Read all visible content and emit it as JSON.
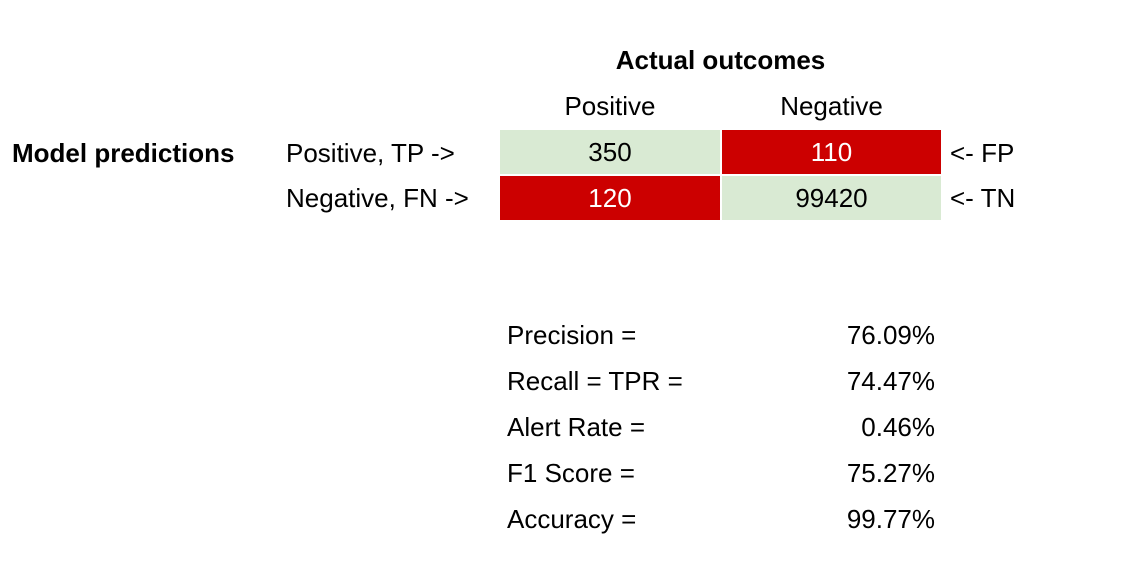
{
  "confusion_matrix": {
    "title": "Actual outcomes",
    "column_headers": [
      "Positive",
      "Negative"
    ],
    "row_group_label": "Model predictions",
    "rows": [
      {
        "label": "Positive, TP ->",
        "cells": [
          "350",
          "110"
        ],
        "suffix": "<- FP"
      },
      {
        "label": "Negative, FN ->",
        "cells": [
          "120",
          "99420"
        ],
        "suffix": "<- TN"
      }
    ],
    "colors": {
      "correct_fill": "#d9ead3",
      "error_fill": "#cc0000",
      "error_text": "#ffffff"
    }
  },
  "metrics": [
    {
      "label": "Precision =",
      "value": "76.09%"
    },
    {
      "label": "Recall = TPR =",
      "value": "74.47%"
    },
    {
      "label": "Alert Rate =",
      "value": "0.46%"
    },
    {
      "label": "F1 Score =",
      "value": "75.27%"
    },
    {
      "label": "Accuracy =",
      "value": "99.77%"
    }
  ]
}
